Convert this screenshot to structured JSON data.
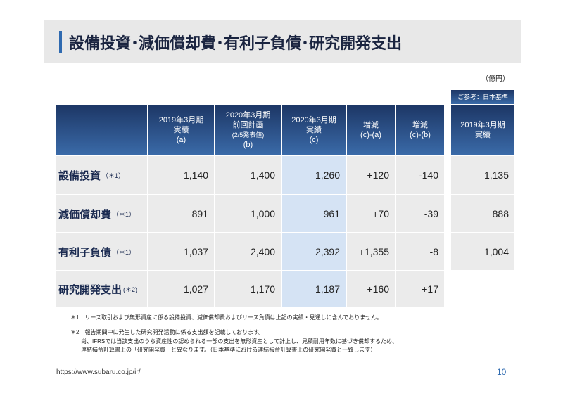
{
  "header": {
    "title": "設備投資･減価償却費･有利子負債･研究開発支出"
  },
  "unit": "（億円）",
  "table": {
    "columns": [
      [
        "2019年3月期",
        "実績",
        "(a)"
      ],
      [
        "2020年3月期",
        "前回計画",
        "(2/5発表値)",
        "(b)"
      ],
      [
        "2020年3月期",
        "実績",
        "(c)"
      ],
      [
        "増減",
        "(c)-(a)"
      ],
      [
        "増減",
        "(c)-(b)"
      ]
    ],
    "rows": [
      {
        "label": "設備投資",
        "note": "（＊1）",
        "cells": [
          "1,140",
          "1,400",
          "1,260",
          "+120",
          "-140"
        ]
      },
      {
        "label": "減価償却費",
        "note": "（＊1）",
        "cells": [
          "891",
          "1,000",
          "961",
          "+70",
          "-39"
        ]
      },
      {
        "label": "有利子負債",
        "note": "（＊1）",
        "cells": [
          "1,037",
          "2,400",
          "2,392",
          "+1,355",
          "-8"
        ]
      },
      {
        "label": "研究開発支出",
        "note": "(＊2)",
        "cells": [
          "1,027",
          "1,170",
          "1,187",
          "+160",
          "+17"
        ]
      }
    ]
  },
  "reference": {
    "caption": "ご参考：日本基準",
    "column": [
      "2019年3月期",
      "実績"
    ],
    "values": [
      "1,135",
      "888",
      "1,004"
    ]
  },
  "footnotes": [
    "＊1　リース取引および無形資産に係る設備投資、減価償却費およびリース負債は上記の実績・見通しに含んでおりません。",
    "＊2　報告期間中に発生した研究開発活動に係る支出額を記載しております。",
    "尚、IFRSでは当該支出のうち資産性の認められる一部の支出を無形資産として計上し、見積耐用年数に基づき償却するため、",
    "連結損益計算書上の「研究開発費」と異なります。（日本基準における連結損益計算書上の研究開発費と一致します）"
  ],
  "footer": {
    "url": "https://www.subaru.co.jp/ir/",
    "page": "10"
  }
}
